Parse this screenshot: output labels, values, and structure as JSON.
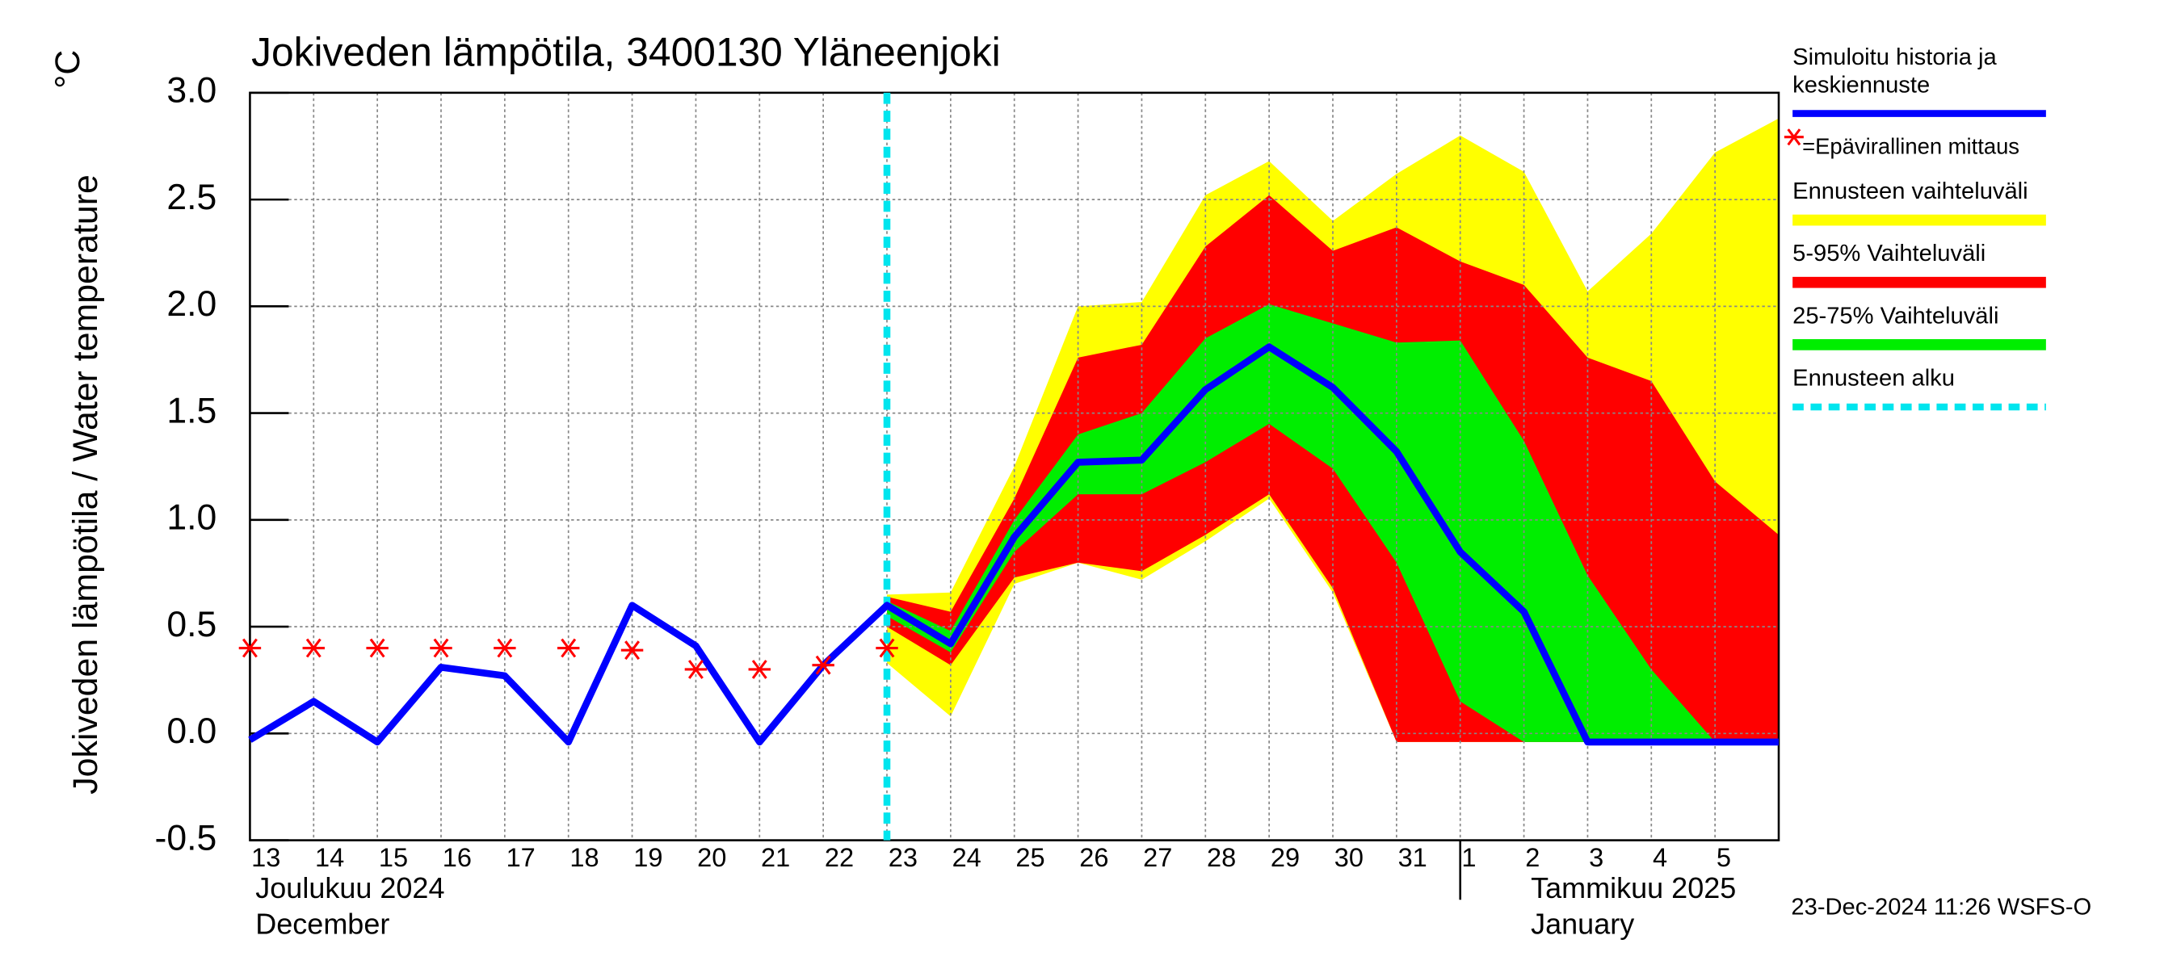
{
  "chart_data": {
    "type": "band-forecast",
    "title": "Jokiveden lämpötila, 3400130 Yläneenjoki",
    "y_label": "Jokiveden lämpötila / Water temperature",
    "y_unit": "°C",
    "month_labels": [
      "Joulukuu  2024",
      "December",
      "Tammikuu  2025",
      "January"
    ],
    "timestamp": "23-Dec-2024 11:26 WSFS-O",
    "categories": [
      "13",
      "14",
      "15",
      "16",
      "17",
      "18",
      "19",
      "20",
      "21",
      "22",
      "23",
      "24",
      "25",
      "26",
      "27",
      "28",
      "29",
      "30",
      "31",
      "1",
      "2",
      "3",
      "4",
      "5",
      null
    ],
    "ylim": [
      -0.5,
      3.0
    ],
    "yticks": [
      -0.5,
      {
        "value": 0,
        "label": "0.0"
      },
      0.5,
      {
        "value": 1,
        "label": "1.0"
      },
      1.5,
      {
        "value": 2,
        "label": "2.0"
      },
      2.5,
      {
        "value": 3,
        "label": "3.0"
      }
    ],
    "grid": true,
    "bands": [
      {
        "name": "Ennusteen vaihteluväli",
        "color": "#ffff00",
        "high": [
          null,
          null,
          null,
          null,
          null,
          null,
          null,
          null,
          null,
          null,
          0.65,
          0.66,
          1.25,
          2.0,
          2.02,
          2.52,
          2.68,
          2.4,
          2.62,
          2.8,
          2.63,
          2.07,
          2.34,
          2.72,
          2.88
        ],
        "low": [
          null,
          null,
          null,
          null,
          null,
          null,
          null,
          null,
          null,
          null,
          0.33,
          0.08,
          0.7,
          0.8,
          0.72,
          0.9,
          1.1,
          0.66,
          -0.04,
          -0.04,
          -0.04,
          -0.04,
          -0.04,
          -0.04,
          -0.04
        ]
      },
      {
        "name": "5-95% Vaihteluväli",
        "color": "#ff0000",
        "high": [
          null,
          null,
          null,
          null,
          null,
          null,
          null,
          null,
          null,
          null,
          0.64,
          0.57,
          1.1,
          1.76,
          1.82,
          2.28,
          2.52,
          2.26,
          2.37,
          2.21,
          2.1,
          1.76,
          1.65,
          1.18,
          0.93
        ],
        "low": [
          null,
          null,
          null,
          null,
          null,
          null,
          null,
          null,
          null,
          null,
          0.5,
          0.32,
          0.73,
          0.8,
          0.76,
          0.93,
          1.12,
          0.68,
          -0.04,
          -0.04,
          -0.04,
          -0.04,
          -0.04,
          -0.04,
          -0.04
        ]
      },
      {
        "name": "25-75% Vaihteluväli",
        "color": "#00ee00",
        "high": [
          null,
          null,
          null,
          null,
          null,
          null,
          null,
          null,
          null,
          null,
          0.62,
          0.48,
          1.0,
          1.4,
          1.5,
          1.85,
          2.01,
          1.92,
          1.83,
          1.84,
          1.37,
          0.74,
          0.3,
          -0.04,
          -0.04
        ],
        "low": [
          null,
          null,
          null,
          null,
          null,
          null,
          null,
          null,
          null,
          null,
          0.55,
          0.38,
          0.85,
          1.12,
          1.12,
          1.27,
          1.45,
          1.24,
          0.8,
          0.15,
          -0.04,
          -0.04,
          -0.04,
          -0.04,
          -0.04
        ]
      }
    ],
    "series": [
      {
        "name": "Simuloitu historia ja keskiennuste",
        "color": "#0000ff",
        "values": [
          -0.03,
          0.15,
          -0.04,
          0.31,
          0.27,
          -0.04,
          0.6,
          0.41,
          -0.04,
          0.32,
          0.6,
          0.42,
          0.92,
          1.27,
          1.28,
          1.61,
          1.81,
          1.62,
          1.32,
          0.85,
          0.57,
          -0.04,
          -0.04,
          -0.04,
          -0.04
        ]
      },
      {
        "name": "=Epävirallinen mittaus",
        "color": "#ff0000",
        "marker": "asterisk",
        "values": [
          0.4,
          0.4,
          0.4,
          0.4,
          0.4,
          0.4,
          0.39,
          0.3,
          0.3,
          0.32,
          0.4,
          null,
          null,
          null,
          null,
          null,
          null,
          null,
          null,
          null,
          null,
          null,
          null,
          null,
          null
        ]
      }
    ],
    "forecast_start": {
      "name": "Ennusteen alku",
      "x": 10,
      "color": "#00e5ee"
    }
  }
}
